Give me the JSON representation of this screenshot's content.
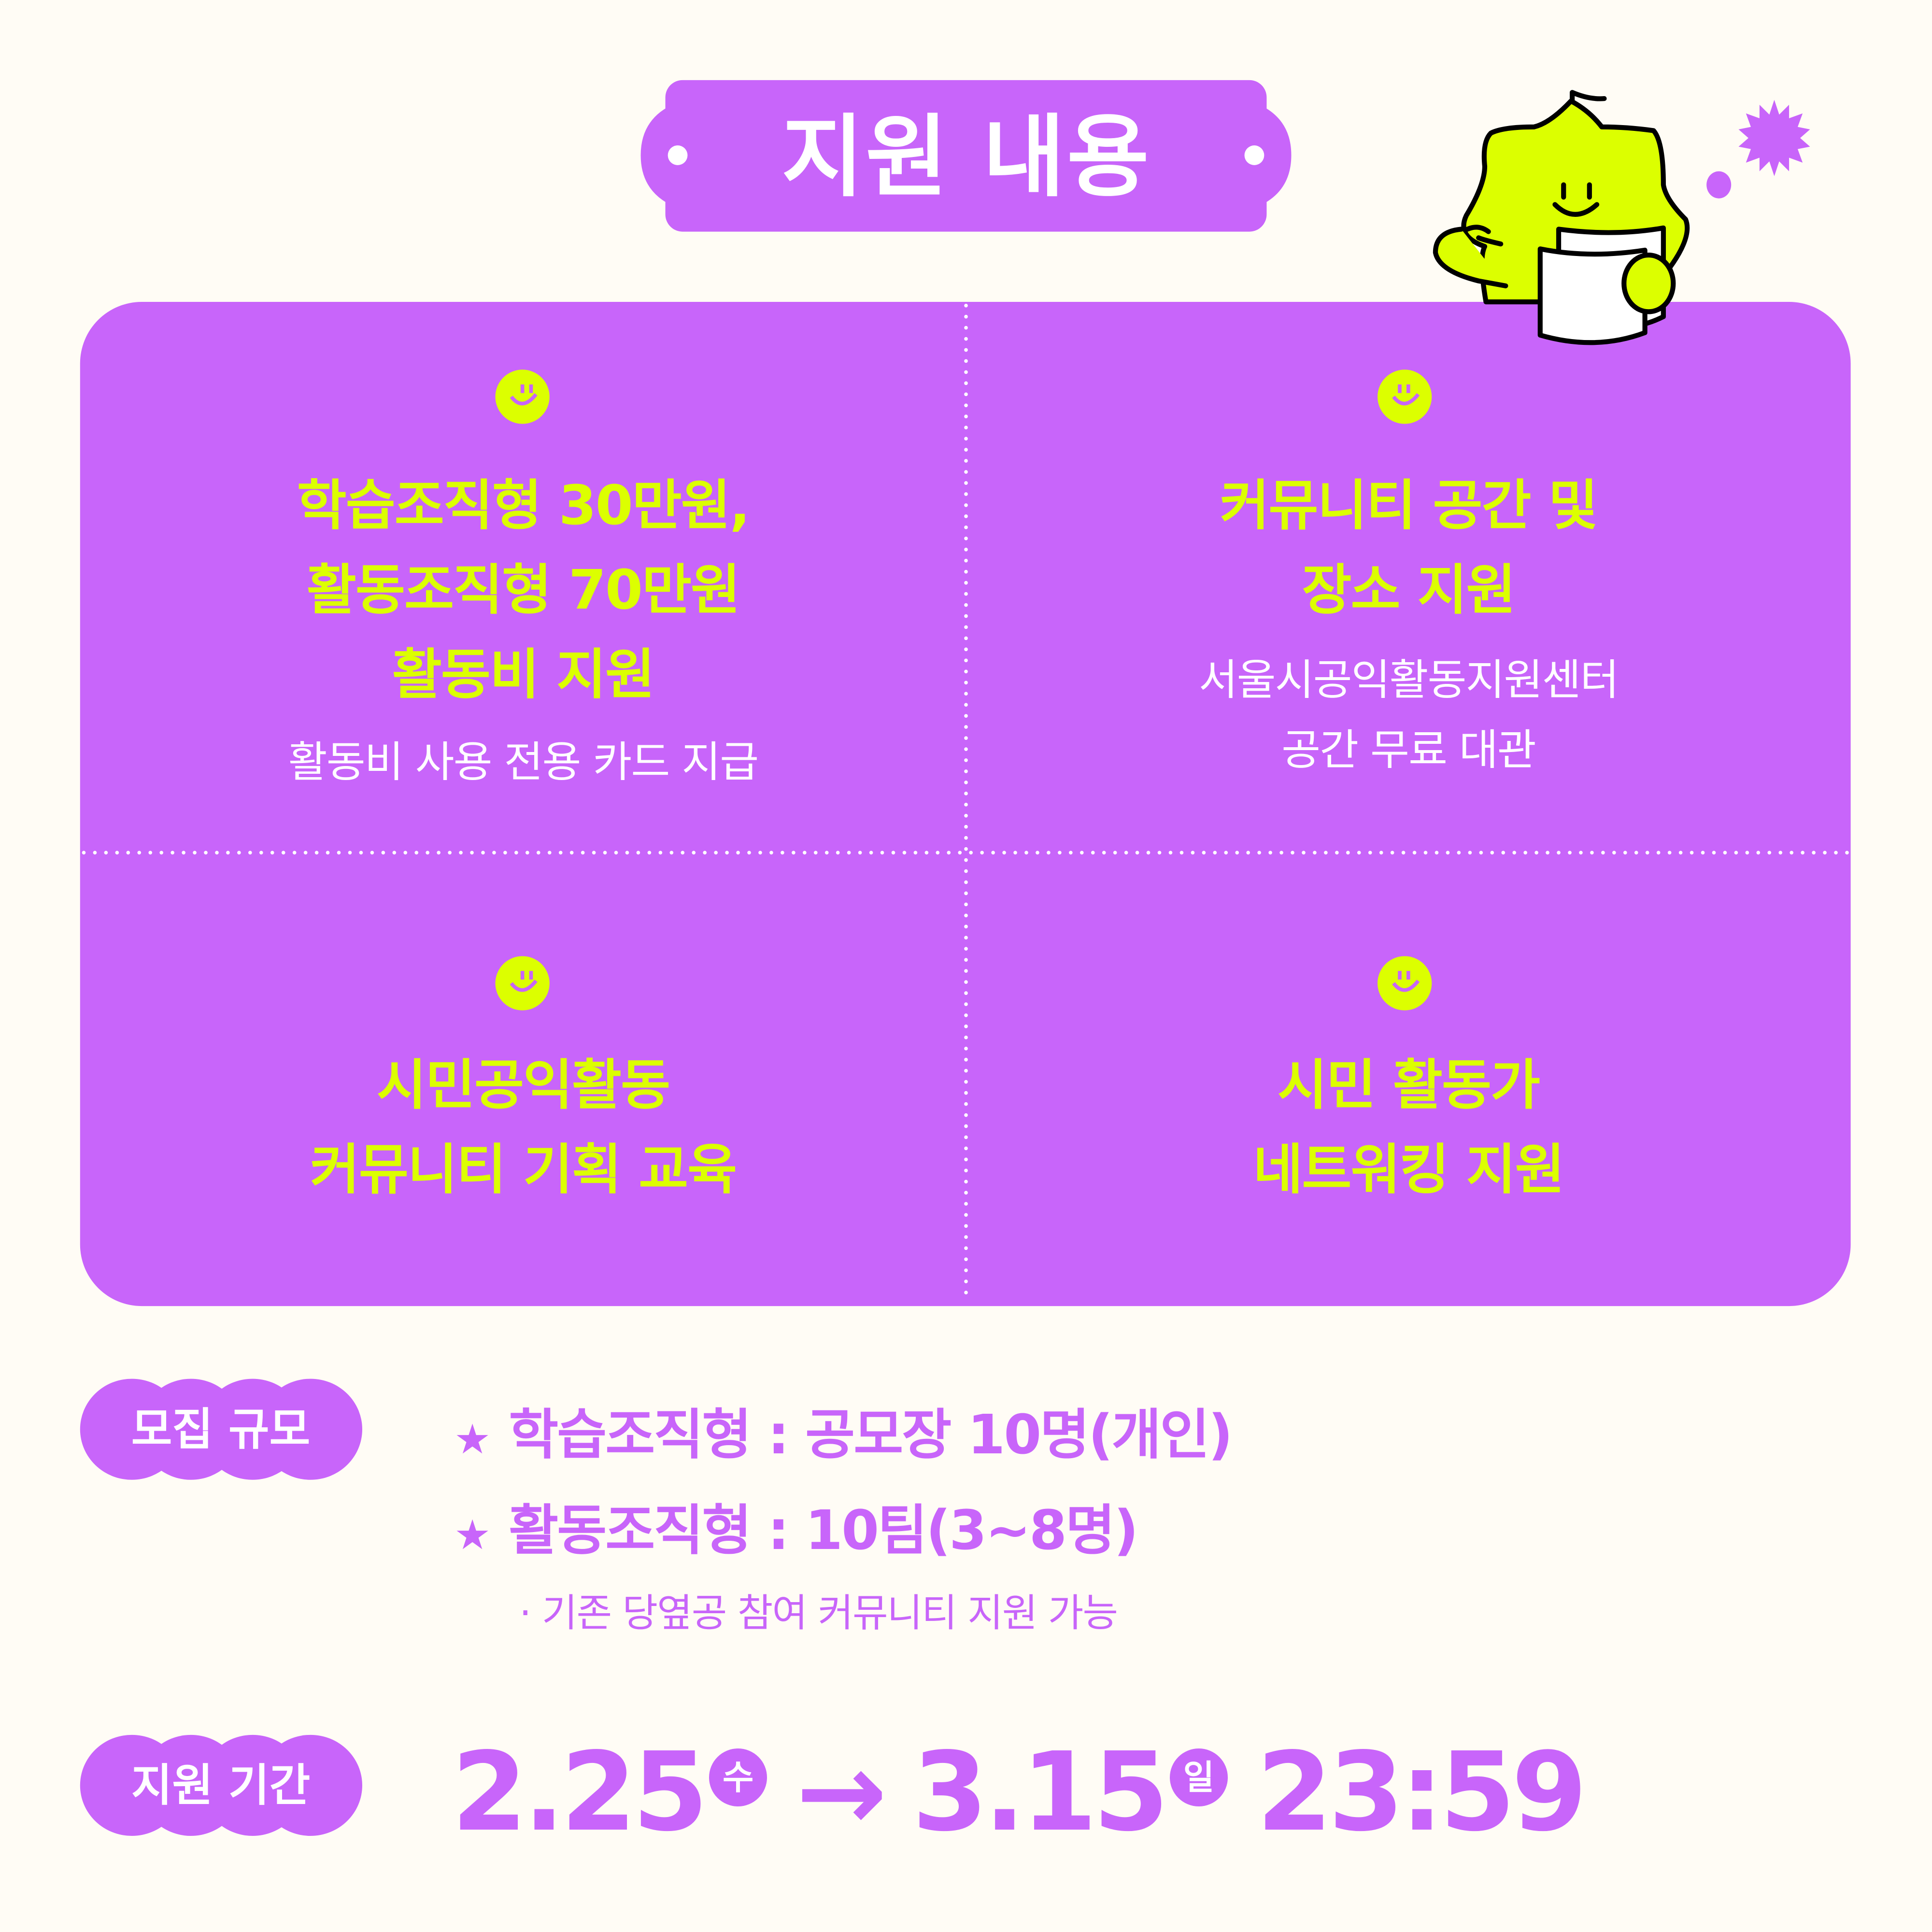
{
  "colors": {
    "purple": "#c865fa",
    "lime": "#dcff00",
    "background": "#fffcf5"
  },
  "header": {
    "title": "지원 내용"
  },
  "panel": {
    "cells": [
      {
        "icon": "smiley-icon",
        "lines": [
          "학습조직형 30만원,",
          "활동조직형 70만원",
          "활동비 지원"
        ],
        "sub": [
          "활동비 사용 전용 카드 지급"
        ]
      },
      {
        "icon": "smiley-icon",
        "lines": [
          "커뮤니티 공간 및",
          "장소 지원"
        ],
        "sub": [
          "서울시공익활동지원센터",
          "공간 무료 대관"
        ]
      },
      {
        "icon": "smiley-icon",
        "lines": [
          "시민공익활동",
          "커뮤니티 기획 교육"
        ],
        "sub": []
      },
      {
        "icon": "smiley-icon",
        "lines": [
          "시민 활동가",
          "네트워킹 지원"
        ],
        "sub": []
      }
    ]
  },
  "recruit": {
    "label": "모집 규모",
    "bullet": "★",
    "items": [
      "학습조직형 : 공모장 10명(개인)",
      "활동조직형 : 10팀(3~8명)"
    ],
    "note": "· 기존 당옆공 참여 커뮤니티 지원 가능"
  },
  "period": {
    "label": "지원 기간",
    "start": "2.25",
    "start_day": "수",
    "arrow": "→",
    "end": "3.15",
    "end_day": "일",
    "time": "23:59"
  },
  "illustration": {
    "character": "lime-mascot-reading-paper",
    "decor": [
      "starburst-icon",
      "dot"
    ]
  }
}
